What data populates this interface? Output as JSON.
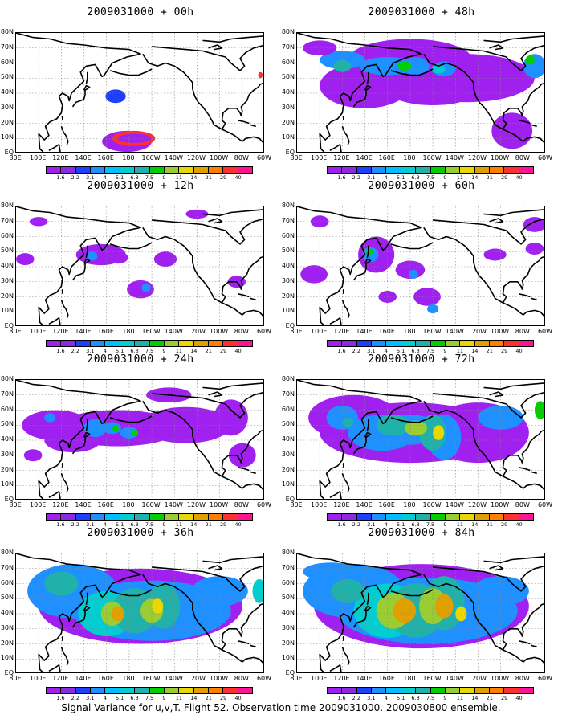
{
  "caption": "Signal Variance for u,v,T. Flight 52. Observation time 2009031000. 2009030800 ensemble.",
  "lat_labels": [
    "80N",
    "70N",
    "60N",
    "50N",
    "40N",
    "30N",
    "20N",
    "10N",
    "EQ"
  ],
  "lon_labels": [
    "80E",
    "100E",
    "120E",
    "140E",
    "160E",
    "180",
    "160W",
    "140W",
    "120W",
    "100W",
    "80W",
    "60W"
  ],
  "levels": [
    "1.6",
    "2.2",
    "3.1",
    "4",
    "5.1",
    "6.3",
    "7.5",
    "9",
    "11",
    "14",
    "21",
    "29",
    "40"
  ],
  "level_colors": [
    "#a020f0",
    "#8a2be2",
    "#1f3fff",
    "#1e90ff",
    "#00bfff",
    "#00ced1",
    "#20b2aa",
    "#00d000",
    "#9acd32",
    "#e8d800",
    "#e0a000",
    "#ff7f00",
    "#ff3030",
    "#ff1493"
  ],
  "panels": [
    {
      "title": "2009031000 + 00h"
    },
    {
      "title": "2009031000 + 48h"
    },
    {
      "title": "2009031000 + 12h"
    },
    {
      "title": "2009031000 + 60h"
    },
    {
      "title": "2009031000 + 24h"
    },
    {
      "title": "2009031000 + 72h"
    },
    {
      "title": "2009031000 + 36h"
    },
    {
      "title": "2009031000 + 84h"
    }
  ]
}
